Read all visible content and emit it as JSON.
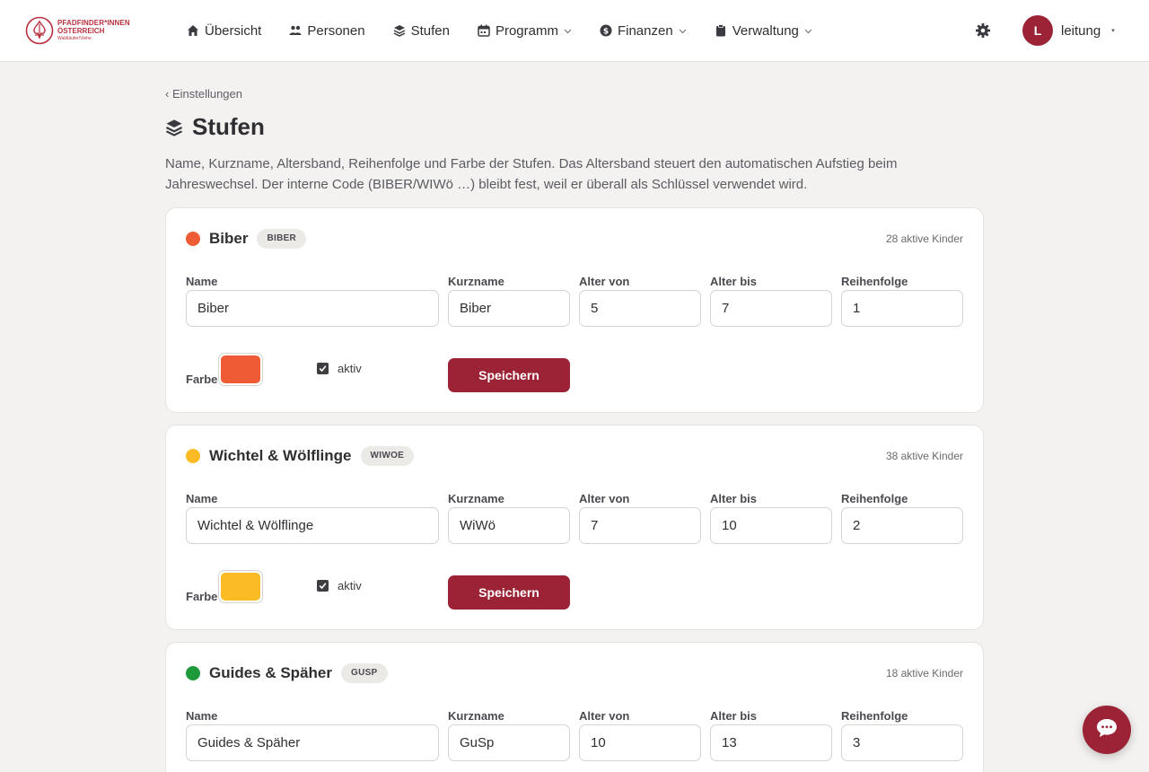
{
  "logo": {
    "line1": "PFADFINDER*INNEN",
    "line2": "ÖSTERREICH",
    "line3": "Waldläufer/Viehe",
    "icon": "scout-emblem-icon"
  },
  "nav": {
    "items": [
      {
        "label": "Übersicht",
        "icon": "home-icon",
        "dropdown": false
      },
      {
        "label": "Personen",
        "icon": "people-icon",
        "dropdown": false
      },
      {
        "label": "Stufen",
        "icon": "layers-icon",
        "dropdown": false
      },
      {
        "label": "Programm",
        "icon": "calendar-icon",
        "dropdown": true
      },
      {
        "label": "Finanzen",
        "icon": "dollar-icon",
        "dropdown": true
      },
      {
        "label": "Verwaltung",
        "icon": "clipboard-icon",
        "dropdown": true
      }
    ]
  },
  "user": {
    "initial": "L",
    "name": "leitung",
    "caret": "▾"
  },
  "breadcrumb": "‹ Einstellungen",
  "page": {
    "title": "Stufen",
    "intro": "Name, Kurzname, Altersband, Reihenfolge und Farbe der Stufen. Das Altersband steuert den automatischen Aufstieg beim Jahreswechsel. Der interne Code (BIBER/WIWö …) bleibt fest, weil er überall als Schlüssel verwendet wird."
  },
  "labels": {
    "name": "Name",
    "kurzname": "Kurzname",
    "alter_von": "Alter von",
    "alter_bis": "Alter bis",
    "reihenfolge": "Reihenfolge",
    "farbe": "Farbe",
    "aktiv": "aktiv",
    "save": "Speichern"
  },
  "stufen": [
    {
      "title": "Biber",
      "code": "BIBER",
      "count": "28 aktive Kinder",
      "color": "#ef5b34",
      "name": "Biber",
      "kurzname": "Biber",
      "alter_von": "5",
      "alter_bis": "7",
      "reihenfolge": "1",
      "aktiv": true
    },
    {
      "title": "Wichtel & Wölflinge",
      "code": "WIWOE",
      "count": "38 aktive Kinder",
      "color": "#fbbb24",
      "name": "Wichtel & Wölflinge",
      "kurzname": "WiWö",
      "alter_von": "7",
      "alter_bis": "10",
      "reihenfolge": "2",
      "aktiv": true
    },
    {
      "title": "Guides & Späher",
      "code": "GUSP",
      "count": "18 aktive Kinder",
      "color": "#1e9a3b",
      "name": "Guides & Späher",
      "kurzname": "GuSp",
      "alter_von": "10",
      "alter_bis": "13",
      "reihenfolge": "3",
      "aktiv": true
    }
  ],
  "colors": {
    "accent": "#9b2335",
    "background": "#f3f2f0"
  }
}
